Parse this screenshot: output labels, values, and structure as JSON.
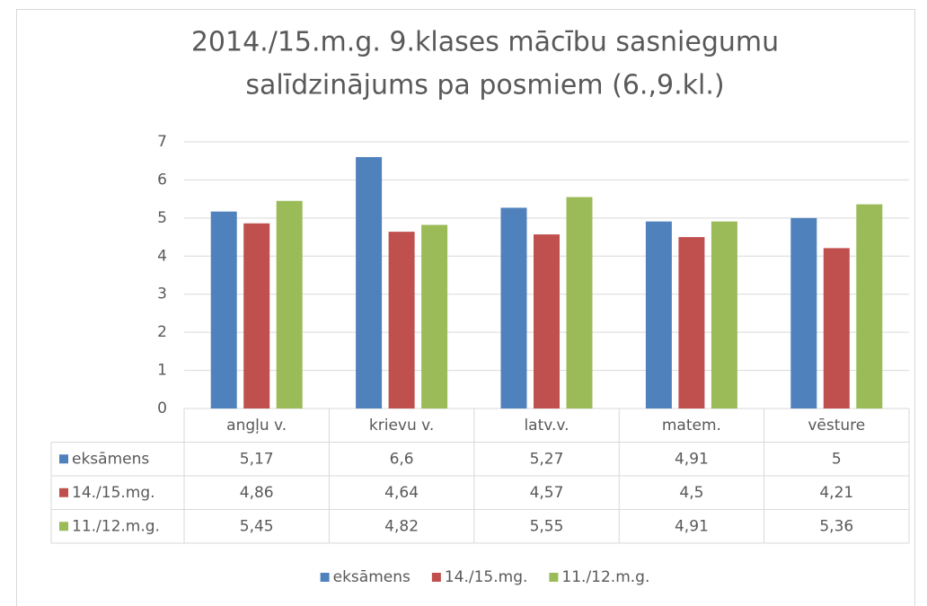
{
  "chart_data": {
    "type": "bar",
    "title": [
      "2014./15.m.g. 9.klases mācību sasniegumu",
      "salīdzinājums pa posmiem (6.,9.kl.)"
    ],
    "categories": [
      "angļu v.",
      "krievu v.",
      "latv.v.",
      "matem.",
      "vēsture"
    ],
    "series": [
      {
        "name": "eksāmens",
        "color": "#4f81bd",
        "values": [
          5.17,
          6.6,
          5.27,
          4.91,
          5
        ],
        "value_labels": [
          "5,17",
          "6,6",
          "5,27",
          "4,91",
          "5"
        ]
      },
      {
        "name": "14./15.mg.",
        "color": "#c0504d",
        "values": [
          4.86,
          4.64,
          4.57,
          4.5,
          4.21
        ],
        "value_labels": [
          "4,86",
          "4,64",
          "4,57",
          "4,5",
          "4,21"
        ]
      },
      {
        "name": "11./12.m.g.",
        "color": "#9bbb59",
        "values": [
          5.45,
          4.82,
          5.55,
          4.91,
          5.36
        ],
        "value_labels": [
          "5,45",
          "4,82",
          "5,55",
          "4,91",
          "5,36"
        ]
      }
    ],
    "ylim": [
      0,
      7
    ],
    "yticks": [
      0,
      1,
      2,
      3,
      4,
      5,
      6,
      7
    ],
    "grid": true,
    "legend": "bottom"
  }
}
